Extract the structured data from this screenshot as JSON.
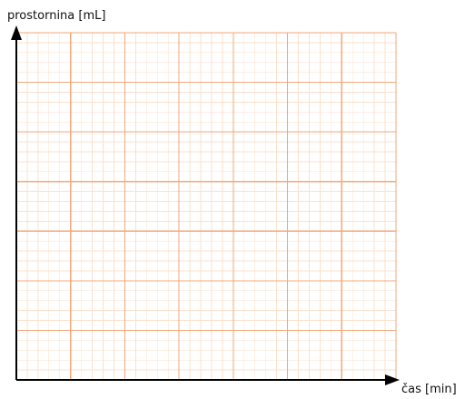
{
  "chart_data": {
    "type": "line",
    "series": [],
    "ylabel": "prostornina [mL]",
    "xlabel": "čas [min]",
    "grid": true,
    "grid_style": "graph paper",
    "major_cells_x": 7,
    "major_cells_y": 7,
    "minor_subdivisions": 5
  },
  "colors": {
    "minor_grid": "#fbe0cc",
    "major_grid": "#f3a77a",
    "axis": "#000000"
  }
}
